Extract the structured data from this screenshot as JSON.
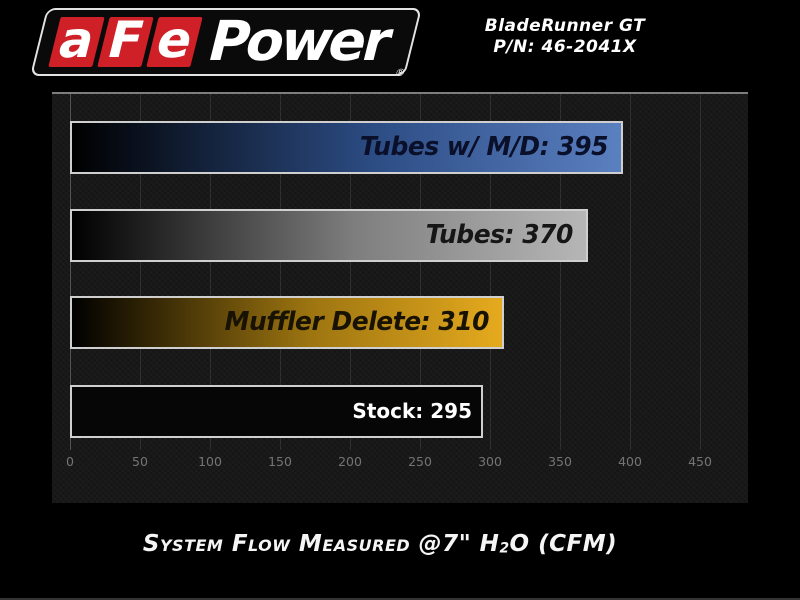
{
  "brand": {
    "segments": [
      "a",
      "F",
      "e"
    ],
    "wordmark": "Power",
    "registered_mark": "®",
    "red": "#cf2027"
  },
  "header": {
    "product": "BladeRunner GT",
    "part_number": "P/N: 46-2041X"
  },
  "chart_data": {
    "type": "bar",
    "orientation": "horizontal",
    "title": "System Flow Measured @7\" H2O (CFM)",
    "categories": [
      "Tubes w/ M/D",
      "Tubes",
      "Muffler Delete",
      "Stock"
    ],
    "values": [
      395,
      370,
      310,
      295
    ],
    "bar_labels": [
      "Tubes w/ M/D: 395",
      "Tubes: 370",
      "Muffler Delete: 310",
      "Stock: 295"
    ],
    "x_ticks": [
      0,
      50,
      100,
      150,
      200,
      250,
      300,
      350,
      400,
      450
    ],
    "xlim": [
      0,
      485
    ],
    "grid": "vertical",
    "legend": "none",
    "panel_background": "#151515",
    "bar_styles": [
      {
        "name": "tubes-with-muffler-delete",
        "fill_from": "#000000",
        "fill_mid": "#2c4c84",
        "fill_to": "#5b80c0",
        "label_color": "#0a102a",
        "label_plain": false
      },
      {
        "name": "tubes",
        "fill_from": "#000000",
        "fill_mid": "#7e7e7e",
        "fill_to": "#b6b6b6",
        "label_color": "#161616",
        "label_plain": false
      },
      {
        "name": "muffler-delete",
        "fill_from": "#000000",
        "fill_mid": "#9c7410",
        "fill_to": "#e5aa1e",
        "label_color": "#181203",
        "label_plain": false
      },
      {
        "name": "stock",
        "fill_from": "#060606",
        "fill_mid": "#060606",
        "fill_to": "#060606",
        "label_color": "#ffffff",
        "label_plain": true
      }
    ]
  },
  "footer": {
    "title_prefix": "System Flow Measured @7\" H",
    "title_sub": "2",
    "title_suffix": "O (CFM)"
  }
}
